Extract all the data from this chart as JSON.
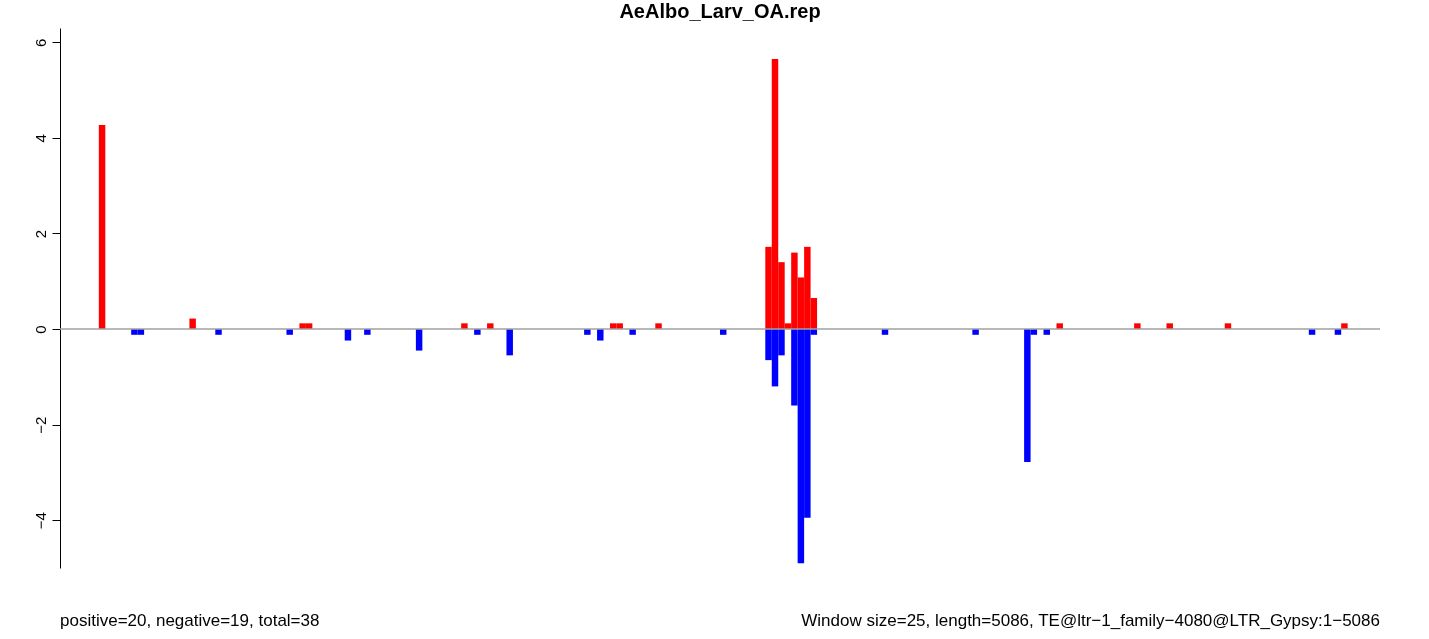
{
  "chart_data": {
    "type": "bar",
    "title": "AeAlbo_Larv_OA.rep",
    "stacked": true,
    "tick_labels": "y",
    "grid": false,
    "legend": false,
    "annotations": [
      "positive=20, negative=19, total=38",
      "Window size=25, length=5086, TE@ltr−1_family−4080@LTR_Gypsy:1−5086"
    ],
    "ylim": [
      -5,
      6.3
    ],
    "yticks": [
      -4,
      -2,
      0,
      2,
      4,
      6
    ],
    "ref_lines": [
      {
        "axis": "y",
        "value": 0,
        "color": "#a0a0a0"
      }
    ],
    "categories": [
      null,
      null,
      null,
      null,
      null,
      null,
      null,
      null,
      null,
      null,
      null,
      null,
      null,
      null,
      null,
      null,
      null,
      null,
      null,
      null,
      null,
      null,
      null,
      null,
      null,
      null,
      null,
      null,
      null,
      null,
      null,
      null,
      null,
      null,
      null,
      null,
      null,
      null,
      null,
      null,
      null,
      null,
      null,
      null,
      null,
      null,
      null,
      null,
      null,
      null,
      null,
      null,
      null,
      null,
      null,
      null,
      null,
      null,
      null,
      null,
      null,
      null,
      null,
      null,
      null,
      null,
      null,
      null,
      null,
      null,
      null,
      null,
      null,
      null,
      null,
      null,
      null,
      null,
      null,
      null,
      null,
      null,
      null,
      null,
      null,
      null,
      null,
      null,
      null,
      null,
      null,
      null,
      null,
      null,
      null,
      null,
      null,
      null,
      null,
      null,
      null,
      null,
      null,
      null,
      null,
      null,
      null,
      null,
      null,
      null,
      null,
      null,
      null,
      null,
      null,
      null,
      null,
      null,
      null,
      null,
      null,
      null,
      null,
      null,
      null,
      null,
      null,
      null,
      null,
      null,
      null,
      null,
      null,
      null,
      null,
      null,
      null,
      null,
      null,
      null,
      null,
      null,
      null,
      null,
      null,
      null,
      null,
      null,
      null,
      null,
      null,
      null,
      null,
      null,
      null,
      null,
      null,
      null,
      null,
      null,
      null,
      null,
      null,
      null,
      null,
      null,
      null,
      null,
      null,
      null,
      null,
      null,
      null,
      null,
      null,
      null,
      null,
      null,
      null,
      null,
      null,
      null,
      null,
      null,
      null,
      null,
      null,
      null,
      null,
      null,
      null,
      null,
      null,
      null,
      null,
      null,
      null,
      null,
      null,
      null,
      null,
      null,
      null,
      null
    ],
    "series": [
      {
        "color": "#ff0000",
        "values": [
          null,
          null,
          null,
          null,
          null,
          null,
          4.27,
          null,
          null,
          null,
          null,
          null,
          null,
          null,
          null,
          null,
          null,
          null,
          null,
          null,
          0.22,
          null,
          null,
          null,
          null,
          null,
          null,
          null,
          null,
          null,
          null,
          null,
          null,
          null,
          null,
          null,
          null,
          0.12,
          0.12,
          null,
          null,
          null,
          null,
          null,
          null,
          null,
          null,
          null,
          null,
          null,
          null,
          null,
          null,
          null,
          null,
          null,
          null,
          null,
          null,
          null,
          null,
          null,
          0.12,
          null,
          null,
          null,
          0.12,
          null,
          null,
          null,
          null,
          null,
          null,
          null,
          null,
          null,
          null,
          null,
          null,
          null,
          null,
          null,
          null,
          null,
          null,
          0.12,
          0.12,
          null,
          null,
          null,
          null,
          null,
          0.12,
          null,
          null,
          null,
          null,
          null,
          null,
          null,
          null,
          null,
          null,
          null,
          null,
          null,
          null,
          null,
          null,
          1.72,
          5.65,
          1.4,
          0.12,
          1.6,
          1.08,
          1.72,
          0.65,
          null,
          null,
          null,
          null,
          null,
          null,
          null,
          null,
          null,
          null,
          null,
          null,
          null,
          null,
          null,
          null,
          null,
          null,
          null,
          null,
          null,
          null,
          null,
          null,
          null,
          null,
          null,
          null,
          null,
          null,
          null,
          null,
          null,
          null,
          null,
          null,
          null,
          0.12,
          null,
          null,
          null,
          null,
          null,
          null,
          null,
          null,
          null,
          null,
          null,
          0.12,
          null,
          null,
          null,
          null,
          0.12,
          null,
          null,
          null,
          null,
          null,
          null,
          null,
          null,
          0.12,
          null,
          null,
          null,
          null,
          null,
          null,
          null,
          null,
          null,
          null,
          null,
          null,
          null,
          null,
          null,
          null,
          null,
          0.12,
          null,
          null,
          null,
          null,
          null
        ]
      },
      {
        "color": "#0000ff",
        "values": [
          null,
          null,
          null,
          null,
          null,
          null,
          null,
          null,
          null,
          null,
          null,
          -0.12,
          -0.12,
          null,
          null,
          null,
          null,
          null,
          null,
          null,
          null,
          null,
          null,
          null,
          -0.12,
          null,
          null,
          null,
          null,
          null,
          null,
          null,
          null,
          null,
          null,
          -0.12,
          null,
          null,
          null,
          null,
          null,
          null,
          null,
          null,
          -0.24,
          null,
          null,
          -0.12,
          null,
          null,
          null,
          null,
          null,
          null,
          null,
          -0.45,
          null,
          null,
          null,
          null,
          null,
          null,
          null,
          null,
          -0.12,
          null,
          null,
          null,
          null,
          -0.55,
          null,
          null,
          null,
          null,
          null,
          null,
          null,
          null,
          null,
          null,
          null,
          -0.12,
          null,
          -0.24,
          null,
          null,
          null,
          null,
          -0.12,
          null,
          null,
          null,
          null,
          null,
          null,
          null,
          null,
          null,
          null,
          null,
          null,
          null,
          -0.12,
          null,
          null,
          null,
          null,
          null,
          null,
          -0.65,
          -1.2,
          -0.55,
          null,
          -1.6,
          -4.9,
          -3.95,
          -0.12,
          null,
          null,
          null,
          null,
          null,
          null,
          null,
          null,
          null,
          null,
          -0.12,
          null,
          null,
          null,
          null,
          null,
          null,
          null,
          null,
          null,
          null,
          null,
          null,
          null,
          -0.12,
          null,
          null,
          null,
          null,
          null,
          null,
          null,
          -2.78,
          -0.12,
          null,
          -0.12,
          null,
          null,
          null,
          null,
          null,
          null,
          null,
          null,
          null,
          null,
          null,
          null,
          null,
          null,
          null,
          null,
          null,
          null,
          null,
          null,
          null,
          null,
          null,
          null,
          null,
          null,
          null,
          null,
          null,
          null,
          null,
          null,
          null,
          null,
          null,
          null,
          null,
          null,
          null,
          null,
          -0.12,
          null,
          null,
          null,
          -0.12,
          null,
          null,
          null,
          null,
          null,
          null
        ]
      }
    ]
  }
}
